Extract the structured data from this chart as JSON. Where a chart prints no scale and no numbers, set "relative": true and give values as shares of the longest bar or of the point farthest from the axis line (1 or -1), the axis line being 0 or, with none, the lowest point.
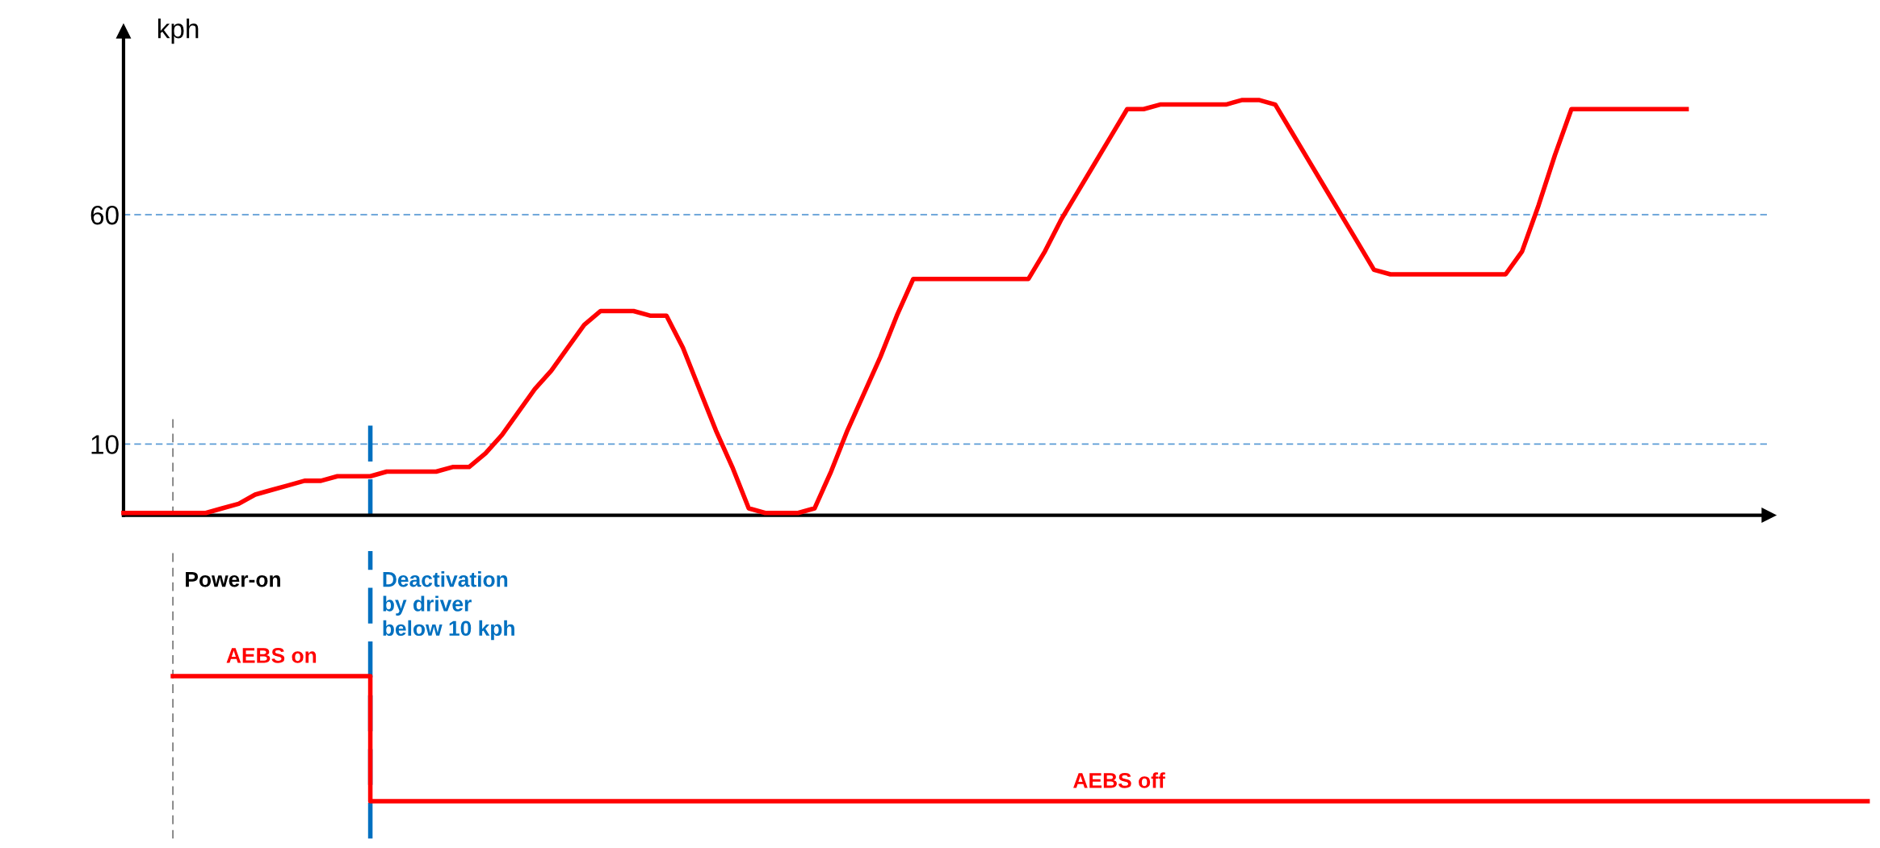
{
  "chart_data": [
    {
      "type": "line",
      "ylabel": "kph",
      "categories": [
        null,
        null,
        null,
        null,
        null,
        null,
        null,
        null,
        null,
        null,
        null,
        null,
        null,
        null,
        null,
        null,
        null,
        null,
        null,
        null,
        null,
        null,
        null,
        null,
        null,
        null,
        null,
        null,
        null,
        null,
        null,
        null,
        null,
        null,
        null,
        null,
        null,
        null,
        null,
        null,
        null,
        null,
        null,
        null,
        null,
        null,
        null,
        null,
        null,
        null,
        null,
        null,
        null,
        null,
        null,
        null,
        null,
        null,
        null,
        null,
        null,
        null,
        null,
        null,
        null,
        null,
        null,
        null,
        null,
        null,
        null,
        null,
        null,
        null,
        null,
        null,
        null,
        null,
        null,
        null,
        null,
        null,
        null,
        null,
        null,
        null,
        null,
        null,
        null,
        null,
        null,
        null,
        null,
        null,
        null,
        null
      ],
      "series": [
        {
          "color": "#ff0000",
          "values": [
            -5,
            -5,
            -5,
            -5,
            -5,
            -5,
            -4,
            -3,
            -1,
            0,
            1,
            2,
            2,
            3,
            3,
            3,
            4,
            4,
            4,
            4,
            5,
            5,
            8,
            12,
            17,
            22,
            26,
            31,
            36,
            39,
            39,
            39,
            38,
            38,
            31,
            22,
            13,
            5,
            -4,
            -5,
            -5,
            -5,
            -4,
            4,
            13,
            21,
            29,
            38,
            46,
            46,
            46,
            46,
            46,
            46,
            46,
            46,
            52,
            59,
            65,
            71,
            77,
            83,
            83,
            84,
            84,
            84,
            84,
            84,
            85,
            85,
            84,
            78,
            72,
            66,
            60,
            54,
            48,
            47,
            47,
            47,
            47,
            47,
            47,
            47,
            47,
            52,
            62,
            73,
            83,
            83,
            83,
            83,
            83,
            83,
            83,
            83
          ]
        }
      ],
      "ylim": [
        -5.5,
        100
      ],
      "yticks": [
        10,
        60
      ],
      "tick_labels": "y",
      "grid": "y"
    },
    {
      "type": "step",
      "relative": true,
      "categories": [
        null,
        null,
        null,
        null,
        null,
        null,
        null,
        null,
        null,
        null,
        null,
        null,
        null,
        null,
        null,
        null,
        null,
        null,
        null,
        null,
        null,
        null,
        null,
        null,
        null,
        null,
        null,
        null,
        null,
        null,
        null,
        null,
        null,
        null,
        null,
        null,
        null,
        null,
        null,
        null,
        null,
        null,
        null,
        null,
        null,
        null,
        null,
        null,
        null,
        null,
        null,
        null,
        null,
        null,
        null,
        null,
        null,
        null,
        null,
        null,
        null,
        null,
        null,
        null,
        null,
        null,
        null,
        null,
        null,
        null,
        null,
        null,
        null,
        null,
        null,
        null,
        null,
        null,
        null,
        null,
        null,
        null,
        null,
        null,
        null,
        null,
        null,
        null,
        null,
        null,
        null,
        null,
        null,
        null,
        null,
        null,
        null,
        null,
        null,
        null,
        null,
        null,
        null,
        null,
        null,
        null,
        null
      ],
      "series": [
        {
          "color": "#ff0000",
          "values": [
            null,
            null,
            null,
            1,
            1,
            1,
            1,
            1,
            1,
            1,
            1,
            1,
            1,
            1,
            1,
            0,
            0,
            0,
            0,
            0,
            0,
            0,
            0,
            0,
            0,
            0,
            0,
            0,
            0,
            0,
            0,
            0,
            0,
            0,
            0,
            0,
            0,
            0,
            0,
            0,
            0,
            0,
            0,
            0,
            0,
            0,
            0,
            0,
            0,
            0,
            0,
            0,
            0,
            0,
            0,
            0,
            0,
            0,
            0,
            0,
            0,
            0,
            0,
            0,
            0,
            0,
            0,
            0,
            0,
            0,
            0,
            0,
            0,
            0,
            0,
            0,
            0,
            0,
            0,
            0,
            0,
            0,
            0,
            0,
            0,
            0,
            0,
            0,
            0,
            0,
            0,
            0,
            0,
            0,
            0,
            0,
            0,
            0,
            0,
            0,
            0,
            0,
            0,
            0,
            0,
            0,
            0
          ]
        }
      ],
      "tick_labels": false,
      "annotations": [
        "AEBS on",
        "AEBS off",
        "Power-on",
        "Deactivation\nby driver\nbelow 10 kph"
      ]
    }
  ]
}
